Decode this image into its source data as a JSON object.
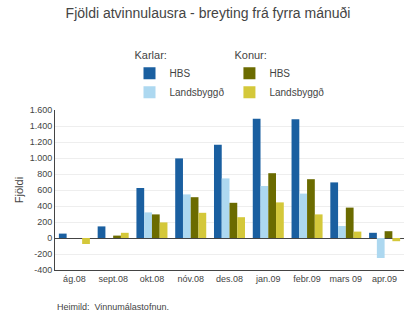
{
  "chart_data": {
    "type": "bar",
    "title": "Fjöldi atvinnulausra - breyting frá fyrra mánuði",
    "ylabel": "Fjöldi",
    "footnote": "Heimild:  Vinnumálastofnun.",
    "categories": [
      "ág.08",
      "sept.08",
      "okt.08",
      "nóv.08",
      "des.08",
      "jan.09",
      "febr.09",
      "mars 09",
      "apr.09"
    ],
    "series": [
      {
        "name": "HBS",
        "group": "Karlar:",
        "color": "#1a5fa0",
        "values": [
          55,
          145,
          625,
          995,
          1165,
          1490,
          1485,
          695,
          65
        ]
      },
      {
        "name": "Landsbyggð",
        "group": "Karlar:",
        "color": "#add8f0",
        "values": [
          0,
          0,
          320,
          545,
          745,
          650,
          555,
          150,
          -250
        ]
      },
      {
        "name": "HBS",
        "group": "Konur:",
        "color": "#6b6b00",
        "values": [
          0,
          30,
          295,
          510,
          440,
          810,
          735,
          380,
          85
        ]
      },
      {
        "name": "Landsbyggð",
        "group": "Konur:",
        "color": "#d4c83a",
        "values": [
          -75,
          65,
          195,
          315,
          260,
          445,
          295,
          80,
          -40
        ]
      }
    ],
    "ylim": [
      -400,
      1600
    ],
    "yticks": [
      -400,
      -200,
      0,
      200,
      400,
      600,
      800,
      {
        "value": 1000,
        "label": "1.000"
      },
      {
        "value": 1200,
        "label": "1.200"
      },
      {
        "value": 1400,
        "label": "1.400"
      },
      {
        "value": 1600,
        "label": "1.600"
      }
    ],
    "grid": true
  }
}
